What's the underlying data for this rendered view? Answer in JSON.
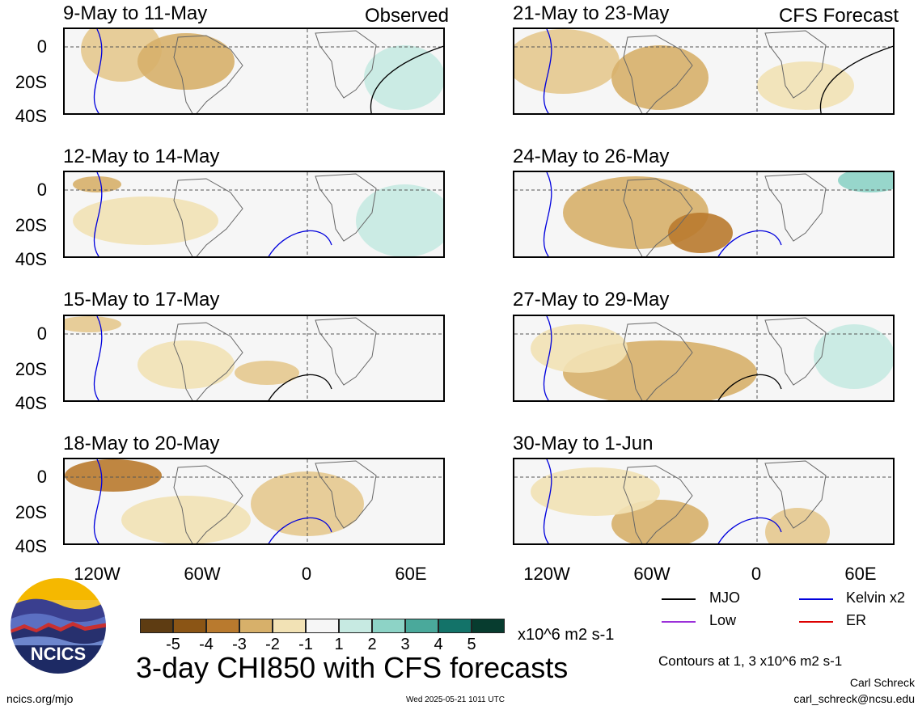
{
  "header": {
    "left_tag": "Observed",
    "right_tag": "CFS Forecast"
  },
  "panels": [
    {
      "title": "9-May to 11-May"
    },
    {
      "title": "12-May to 14-May"
    },
    {
      "title": "15-May to 17-May"
    },
    {
      "title": "18-May to 20-May"
    },
    {
      "title": "21-May to 23-May"
    },
    {
      "title": "24-May to 26-May"
    },
    {
      "title": "27-May to 29-May"
    },
    {
      "title": "30-May to 1-Jun"
    }
  ],
  "axes": {
    "y_ticks": [
      "0",
      "20S",
      "40S"
    ],
    "x_ticks": [
      "120W",
      "60W",
      "0",
      "60E"
    ]
  },
  "colorbar": {
    "labels": [
      "-5",
      "-4",
      "-3",
      "-2",
      "-1",
      "1",
      "2",
      "3",
      "4",
      "5"
    ],
    "units": "x10^6 m2 s-1",
    "colors": [
      "#5e3c12",
      "#8b5515",
      "#b97a2e",
      "#d7b06a",
      "#f2e2b5",
      "#f6f6f6",
      "#c7eae2",
      "#8dd3c6",
      "#4aa99b",
      "#137369",
      "#073c2f"
    ]
  },
  "legend": {
    "items": [
      {
        "label": "MJO",
        "color": "#000000"
      },
      {
        "label": "Kelvin x2",
        "color": "#0000dd"
      },
      {
        "label": "Low",
        "color": "#9b30d9"
      },
      {
        "label": "ER",
        "color": "#dd0000"
      }
    ],
    "note": "Contours at 1, 3 x10^6 m2 s-1"
  },
  "footer": {
    "title": "3-day CHI850 with CFS forecasts",
    "left_url": "ncics.org/mjo",
    "timestamp": "Wed 2025-05-21 1011 UTC",
    "author": "Carl Schreck",
    "email": "carl_schreck@ncsu.edu",
    "logo_text": "NCICS"
  }
}
